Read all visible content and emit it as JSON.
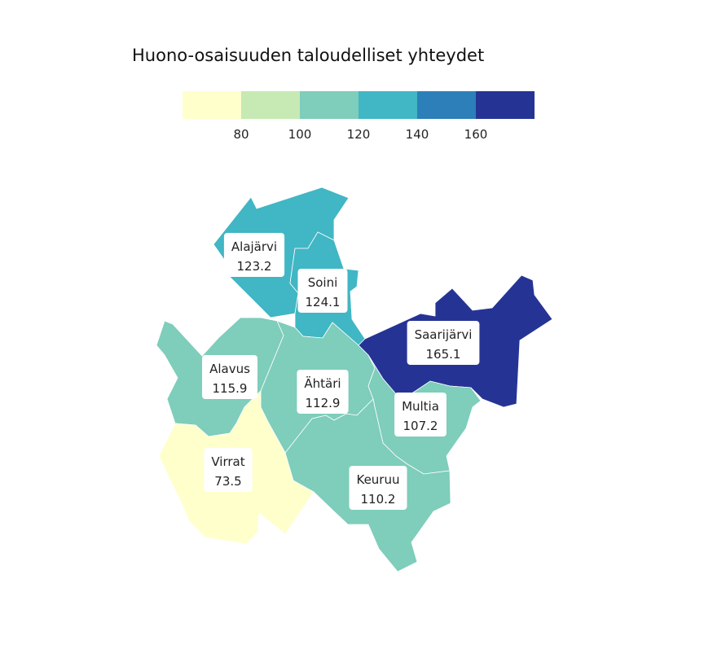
{
  "title": "Huono-osaisuuden taloudelliset yhteydet",
  "legend": {
    "colors": [
      "#ffffcc",
      "#c7e9b4",
      "#7fcdbb",
      "#41b6c4",
      "#2c7fb8",
      "#253494"
    ],
    "breaks": [
      80,
      100,
      120,
      140,
      160
    ],
    "tick_labels": [
      "80",
      "100",
      "120",
      "140",
      "160"
    ]
  },
  "chart_data": {
    "type": "choropleth",
    "title": "Huono-osaisuuden taloudelliset yhteydet",
    "regions": [
      {
        "name": "Alajärvi",
        "value": 123.2,
        "value_label": "123.2"
      },
      {
        "name": "Soini",
        "value": 124.1,
        "value_label": "124.1"
      },
      {
        "name": "Saarijärvi",
        "value": 165.1,
        "value_label": "165.1"
      },
      {
        "name": "Alavus",
        "value": 115.9,
        "value_label": "115.9"
      },
      {
        "name": "Ähtäri",
        "value": 112.9,
        "value_label": "112.9"
      },
      {
        "name": "Multia",
        "value": 107.2,
        "value_label": "107.2"
      },
      {
        "name": "Virrat",
        "value": 73.5,
        "value_label": "73.5"
      },
      {
        "name": "Keuruu",
        "value": 110.2,
        "value_label": "110.2"
      }
    ]
  }
}
